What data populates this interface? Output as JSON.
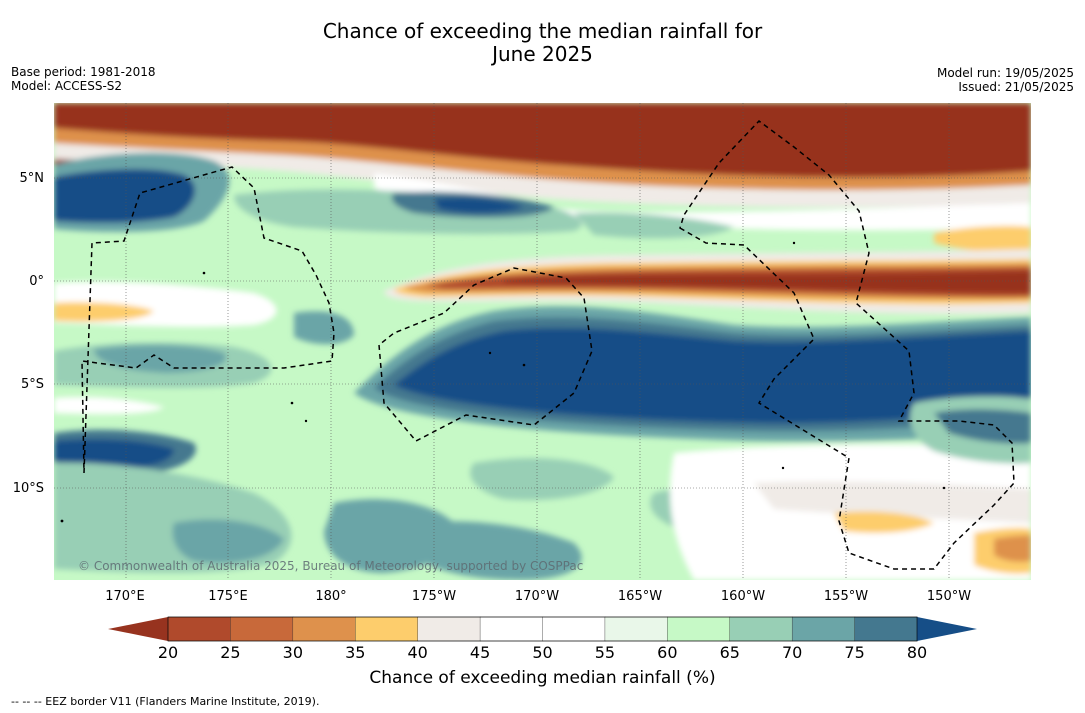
{
  "title_line1": "Chance of exceeding the median rainfall for",
  "title_line2": "June 2025",
  "meta_left": {
    "base_period": "Base period: 1981-2018",
    "model": "Model: ACCESS-S2"
  },
  "meta_right": {
    "model_run": "Model run: 19/05/2025",
    "issued": "Issued: 21/05/2025"
  },
  "lat_labels": [
    "5°N",
    "0°",
    "5°S",
    "10°S"
  ],
  "lon_labels": [
    "170°E",
    "175°E",
    "180°",
    "175°W",
    "170°W",
    "165°W",
    "160°W",
    "155°W",
    "150°W"
  ],
  "credit": "© Commonwealth of Australia 2025, Bureau of Meteorology, supported by COSPPac",
  "colorbar": {
    "ticks": [
      "20",
      "25",
      "30",
      "35",
      "40",
      "45",
      "50",
      "55",
      "60",
      "65",
      "70",
      "75",
      "80"
    ],
    "colors": [
      "#97331f",
      "#b04a2c",
      "#c8693a",
      "#de914c",
      "#fdcd6c",
      "#f0ebe7",
      "#ffffff",
      "#ffffff",
      "#e9f7e9",
      "#c6f9c6",
      "#98cfb5",
      "#6ba5a7",
      "#44788f",
      "#164e87"
    ],
    "label": "Chance of exceeding median rainfall (%)"
  },
  "footnote": "--  --  -- EEZ border V11 (Flanders Marine Institute, 2019)."
}
